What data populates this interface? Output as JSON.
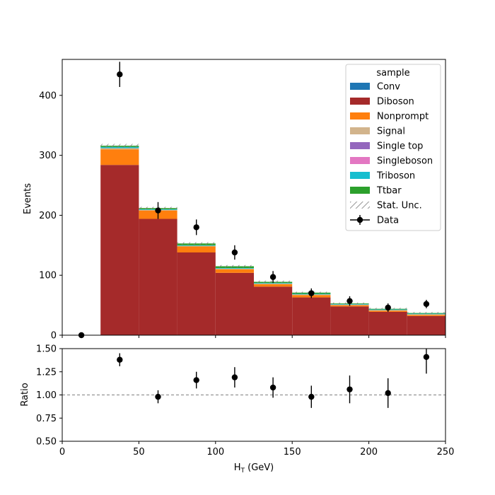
{
  "chart_data": [
    {
      "type": "bar",
      "stacked": true,
      "x_bin_edges": [
        0,
        25,
        50,
        75,
        100,
        125,
        150,
        175,
        200,
        225,
        250
      ],
      "xlim": [
        0,
        250
      ],
      "ylim": [
        0,
        460
      ],
      "yticks": [
        0,
        100,
        200,
        300,
        400
      ],
      "ylabel": "Events",
      "legend": {
        "title": "sample",
        "placement": "top-right",
        "entries": [
          "Conv",
          "Diboson",
          "Nonprompt",
          "Signal",
          "Single top",
          "Singleboson",
          "Triboson",
          "Ttbar",
          "Stat. Unc.",
          "Data"
        ]
      },
      "series": [
        {
          "name": "Conv",
          "color": "#1f77b4",
          "values": [
            0,
            0,
            0,
            0,
            0,
            0,
            0,
            0,
            0,
            0
          ]
        },
        {
          "name": "Diboson",
          "color": "#a52a2a",
          "values": [
            0,
            284,
            194,
            138,
            104,
            81,
            63,
            48,
            39,
            32
          ]
        },
        {
          "name": "Nonprompt",
          "color": "#ff7f0e",
          "values": [
            0,
            26,
            14,
            10,
            6,
            4,
            4,
            2,
            2,
            2
          ]
        },
        {
          "name": "Signal",
          "color": "#d2b48c",
          "values": [
            0,
            2,
            1,
            1,
            1,
            1,
            1,
            1,
            1,
            1
          ]
        },
        {
          "name": "Single top",
          "color": "#9467bd",
          "values": [
            0,
            0,
            0,
            0,
            0,
            0,
            0,
            0,
            0,
            0
          ]
        },
        {
          "name": "Singleboson",
          "color": "#e377c2",
          "values": [
            0,
            0,
            0,
            0,
            0,
            0,
            0,
            0,
            0,
            0
          ]
        },
        {
          "name": "Triboson",
          "color": "#17becf",
          "values": [
            0,
            2,
            1,
            1,
            1,
            1,
            1,
            1,
            1,
            1
          ]
        },
        {
          "name": "Ttbar",
          "color": "#2ca02c",
          "values": [
            0,
            2,
            2,
            3,
            3,
            2,
            2,
            1,
            1,
            1
          ]
        }
      ],
      "stat_unc": [
        0,
        3,
        2,
        2,
        2,
        2,
        1.5,
        1.5,
        1.5,
        1.5
      ],
      "data": {
        "name": "Data",
        "x": [
          12.5,
          37.5,
          62.5,
          87.5,
          112.5,
          137.5,
          162.5,
          187.5,
          212.5,
          237.5
        ],
        "y": [
          0,
          435,
          208,
          180,
          138,
          97,
          70,
          57,
          46,
          52
        ],
        "yerr": [
          0,
          21,
          14,
          13,
          12,
          10,
          8,
          8,
          7,
          7
        ]
      }
    },
    {
      "type": "scatter",
      "xlim": [
        0,
        250
      ],
      "xticks": [
        0,
        50,
        100,
        150,
        200,
        250
      ],
      "xlabel_main": "H",
      "xlabel_sub": "T",
      "xlabel_unit": " (GeV)",
      "ylim": [
        0.5,
        1.5
      ],
      "yticks": [
        "0.50",
        "0.75",
        "1.00",
        "1.25",
        "1.50"
      ],
      "ylabel": "Ratio",
      "reference_line": 1.0,
      "x": [
        37.5,
        62.5,
        87.5,
        112.5,
        137.5,
        162.5,
        187.5,
        212.5,
        237.5
      ],
      "y": [
        1.38,
        0.98,
        1.16,
        1.19,
        1.08,
        0.98,
        1.06,
        1.02,
        1.41
      ],
      "yerr": [
        0.07,
        0.07,
        0.09,
        0.11,
        0.11,
        0.12,
        0.15,
        0.16,
        0.18
      ]
    }
  ],
  "colors": {
    "unc_hatch": "#7f7f7f",
    "data_marker": "#000000",
    "reference_line": "#808080"
  }
}
